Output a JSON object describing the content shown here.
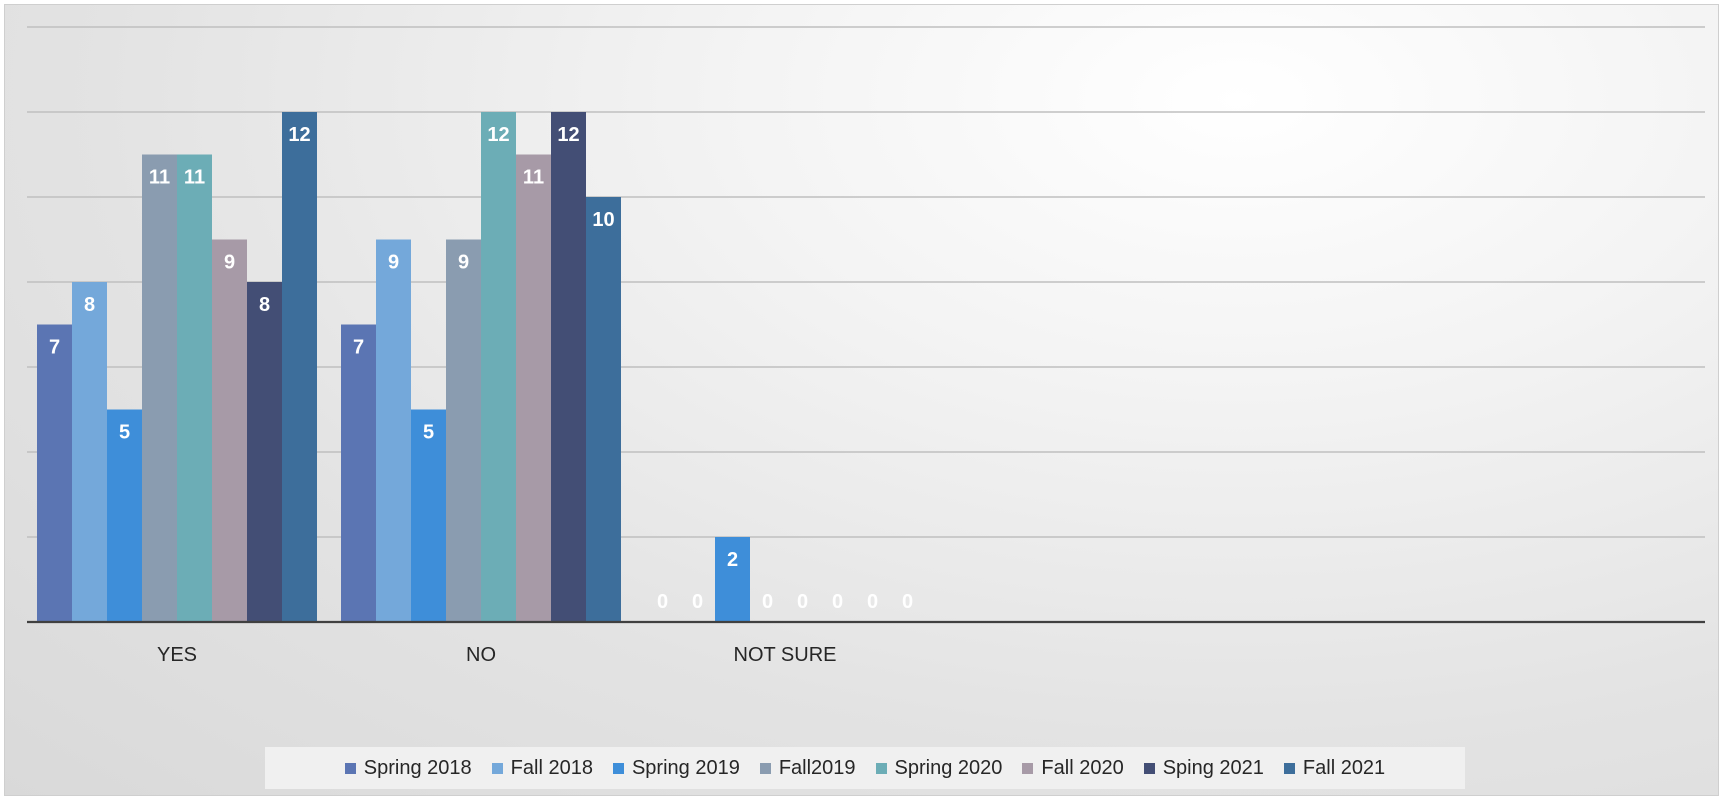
{
  "chart_data": {
    "type": "bar",
    "categories": [
      "YES",
      "NO",
      "NOT SURE"
    ],
    "series": [
      {
        "name": "Spring 2018",
        "color": "#5b75b3",
        "values": [
          7,
          7,
          0
        ]
      },
      {
        "name": "Fall 2018",
        "color": "#74a8da",
        "values": [
          8,
          9,
          0
        ]
      },
      {
        "name": "Spring 2019",
        "color": "#3e8ed9",
        "values": [
          5,
          5,
          2
        ]
      },
      {
        "name": "Fall2019",
        "color": "#8a9cb0",
        "values": [
          11,
          9,
          0
        ]
      },
      {
        "name": "Spring 2020",
        "color": "#6cadb6",
        "values": [
          11,
          12,
          0
        ]
      },
      {
        "name": "Fall 2020",
        "color": "#a79aa7",
        "values": [
          9,
          11,
          0
        ]
      },
      {
        "name": "Sping 2021",
        "color": "#434e75",
        "values": [
          8,
          12,
          0
        ]
      },
      {
        "name": "Fall 2021",
        "color": "#3d6e9b",
        "values": [
          12,
          10,
          0
        ]
      }
    ],
    "ylim": [
      0,
      14
    ],
    "y_gridlines": [
      0,
      2,
      4,
      6,
      8,
      10,
      12,
      14
    ],
    "y_tick_labels_shown": false,
    "data_labels": true,
    "grid": true,
    "legend": "bottom"
  }
}
